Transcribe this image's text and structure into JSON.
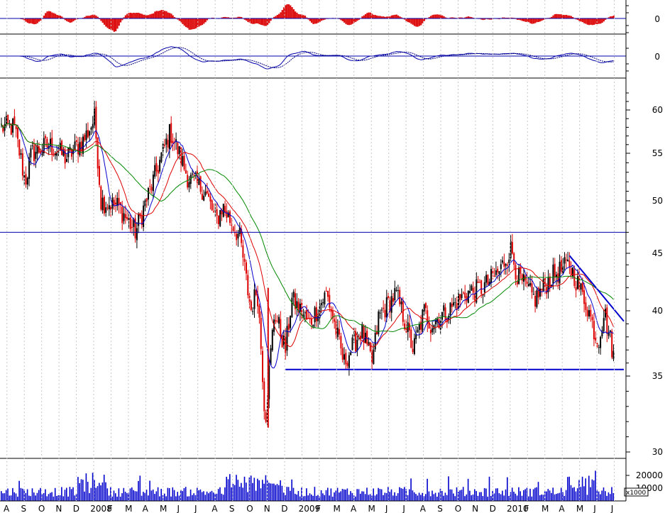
{
  "chart_data": {
    "type": "line",
    "panels": {
      "histogram": {
        "ylabel_ticks": [
          "0"
        ],
        "colors": {
          "bars": "#dd1111",
          "zero_line": "#0000aa"
        }
      },
      "oscillator": {
        "ylabel_ticks": [
          "0"
        ],
        "series": [
          {
            "color": "#0000aa"
          },
          {
            "color": "#000080"
          }
        ]
      },
      "price": {
        "y_ticks": [
          "60",
          "55",
          "50",
          "45",
          "40",
          "35",
          "30"
        ],
        "ylim": [
          30,
          62
        ],
        "candle_colors": {
          "up": "#000000",
          "down": "#dd0000"
        },
        "moving_averages": [
          {
            "color": "#0000cc"
          },
          {
            "color": "#dd0000"
          },
          {
            "color": "#008800"
          }
        ],
        "resistance_level": 47.0,
        "support_level": 35.5,
        "trendline": {
          "from": {
            "x": "2010-04",
            "y": 44.8
          },
          "to": {
            "x": "2010-07",
            "y": 39.5
          }
        },
        "close_points": [
          {
            "x": "2007-08",
            "y": 58.0
          },
          {
            "x": "2007-08-20",
            "y": 52.0
          },
          {
            "x": "2007-09",
            "y": 55.0
          },
          {
            "x": "2007-10",
            "y": 56.0
          },
          {
            "x": "2007-11",
            "y": 54.5
          },
          {
            "x": "2007-12",
            "y": 56.5
          },
          {
            "x": "2007-12-20",
            "y": 59.0
          },
          {
            "x": "2008-01",
            "y": 50.0
          },
          {
            "x": "2008-02",
            "y": 49.5
          },
          {
            "x": "2008-03",
            "y": 47.0
          },
          {
            "x": "2008-04",
            "y": 52.0
          },
          {
            "x": "2008-05",
            "y": 57.5
          },
          {
            "x": "2008-06",
            "y": 52.5
          },
          {
            "x": "2008-07",
            "y": 51.0
          },
          {
            "x": "2008-07-20",
            "y": 48.0
          },
          {
            "x": "2008-08",
            "y": 49.5
          },
          {
            "x": "2008-09",
            "y": 46.5
          },
          {
            "x": "2008-09-20",
            "y": 40.0
          },
          {
            "x": "2008-10",
            "y": 42.0
          },
          {
            "x": "2008-10-15",
            "y": 32.0
          },
          {
            "x": "2008-11",
            "y": 40.0
          },
          {
            "x": "2008-11-20",
            "y": 37.0
          },
          {
            "x": "2008-12",
            "y": 41.0
          },
          {
            "x": "2009-01",
            "y": 39.0
          },
          {
            "x": "2009-02",
            "y": 41.5
          },
          {
            "x": "2009-03",
            "y": 36.0
          },
          {
            "x": "2009-04",
            "y": 38.5
          },
          {
            "x": "2009-04-20",
            "y": 36.0
          },
          {
            "x": "2009-05",
            "y": 39.5
          },
          {
            "x": "2009-06",
            "y": 41.5
          },
          {
            "x": "2009-07",
            "y": 37.0
          },
          {
            "x": "2009-07-20",
            "y": 40.0
          },
          {
            "x": "2009-08",
            "y": 39.0
          },
          {
            "x": "2009-09",
            "y": 40.0
          },
          {
            "x": "2009-10",
            "y": 41.5
          },
          {
            "x": "2009-11",
            "y": 42.0
          },
          {
            "x": "2009-12",
            "y": 43.5
          },
          {
            "x": "2009-12-20",
            "y": 45.5
          },
          {
            "x": "2010-01",
            "y": 43.0
          },
          {
            "x": "2010-02",
            "y": 41.0
          },
          {
            "x": "2010-03",
            "y": 43.0
          },
          {
            "x": "2010-04",
            "y": 44.0
          },
          {
            "x": "2010-05",
            "y": 40.5
          },
          {
            "x": "2010-05-20",
            "y": 37.5
          },
          {
            "x": "2010-06",
            "y": 40.0
          },
          {
            "x": "2010-06-20",
            "y": 36.0
          },
          {
            "x": "2010-07",
            "y": 39.0
          }
        ]
      },
      "volume": {
        "y_ticks": [
          "20000",
          "10000"
        ],
        "unit_label": "x1000",
        "color": "#0000cc"
      }
    },
    "x_axis": {
      "month_labels": [
        "A",
        "S",
        "O",
        "N",
        "D",
        "2008",
        "F",
        "M",
        "A",
        "M",
        "J",
        "J",
        "A",
        "S",
        "O",
        "N",
        "D",
        "2009",
        "F",
        "M",
        "A",
        "M",
        "J",
        "J",
        "A",
        "S",
        "O",
        "N",
        "D",
        "2010",
        "F",
        "M",
        "A",
        "M",
        "J",
        "J"
      ],
      "grid": "vertical-dashed"
    }
  }
}
